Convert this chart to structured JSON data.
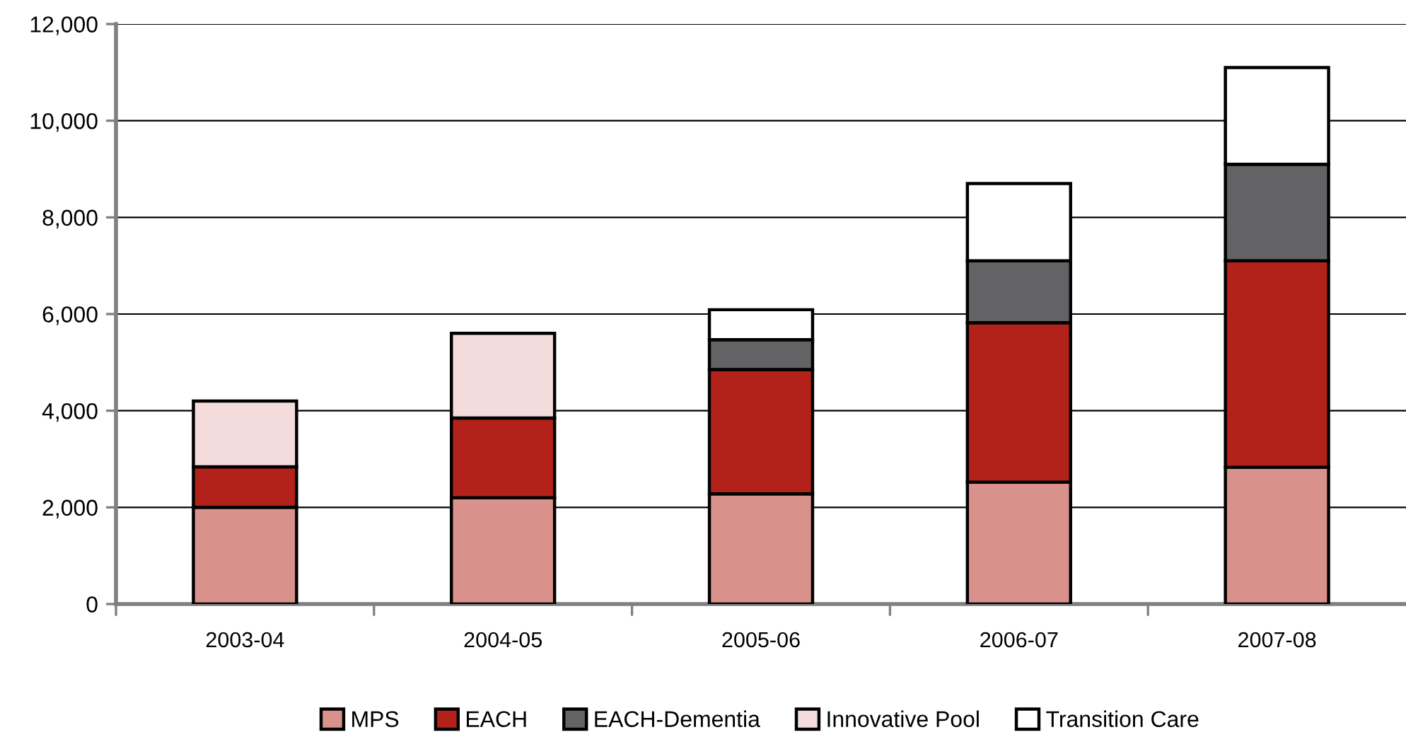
{
  "chart_data": {
    "type": "bar",
    "stacked": true,
    "categories": [
      "2003-04",
      "2004-05",
      "2005-06",
      "2006-07",
      "2007-08"
    ],
    "series": [
      {
        "name": "MPS",
        "color": "#d9918c",
        "values": [
          2000,
          2200,
          2280,
          2520,
          2830
        ]
      },
      {
        "name": "EACH",
        "color": "#b2221a",
        "values": [
          840,
          1650,
          2570,
          3300,
          4270
        ]
      },
      {
        "name": "EACH-Dementia",
        "color": "#636366",
        "values": [
          null,
          null,
          620,
          1280,
          2000
        ]
      },
      {
        "name": "Innovative Pool",
        "color": "#f3dcdb",
        "values": [
          1360,
          1750,
          null,
          null,
          null
        ]
      },
      {
        "name": "Transition Care",
        "color": "#ffffff",
        "values": [
          null,
          null,
          620,
          1600,
          2000
        ]
      }
    ],
    "ylim": [
      0,
      12000
    ],
    "yticks": [
      {
        "value": 0,
        "label": "0"
      },
      {
        "value": 2000,
        "label": "2,000"
      },
      {
        "value": 4000,
        "label": "4,000"
      },
      {
        "value": 6000,
        "label": "6,000"
      },
      {
        "value": 8000,
        "label": "8,000"
      },
      {
        "value": 10000,
        "label": "10,000"
      },
      {
        "value": 12000,
        "label": "12,000"
      }
    ],
    "grid": "y",
    "legend": "bottom"
  }
}
